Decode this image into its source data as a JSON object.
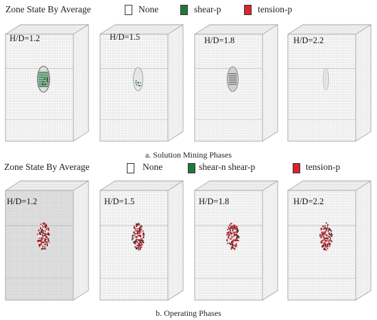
{
  "sections": [
    {
      "legend": {
        "title": "Zone State By Average",
        "items": [
          {
            "label": "None",
            "color": "#ffffff"
          },
          {
            "label": "shear-p",
            "color": "#1e7a3c"
          },
          {
            "label": "tension-p",
            "color": "#d7262e"
          }
        ]
      },
      "caption": "a. Solution Mining Phases",
      "panels": [
        {
          "label": "H/D=1.2",
          "cavity": "shear"
        },
        {
          "label": "H/D=1.5",
          "cavity": "sparse"
        },
        {
          "label": "H/D=1.8",
          "cavity": "grey"
        },
        {
          "label": "H/D=2.2",
          "cavity": "faint"
        }
      ]
    },
    {
      "legend": {
        "title": "Zone State By Average",
        "items": [
          {
            "label": "None",
            "color": "#ffffff"
          },
          {
            "label": "shear-n  shear-p",
            "color": "#1e7a3c"
          },
          {
            "label": "tension-p",
            "color": "#d7262e"
          }
        ]
      },
      "caption": "b. Operating Phases",
      "panels": [
        {
          "label": "H/D=1.2",
          "cavity": "tension"
        },
        {
          "label": "H/D=1.5",
          "cavity": "tension"
        },
        {
          "label": "H/D=1.8",
          "cavity": "tension"
        },
        {
          "label": "H/D=2.2",
          "cavity": "tension"
        }
      ]
    }
  ]
}
